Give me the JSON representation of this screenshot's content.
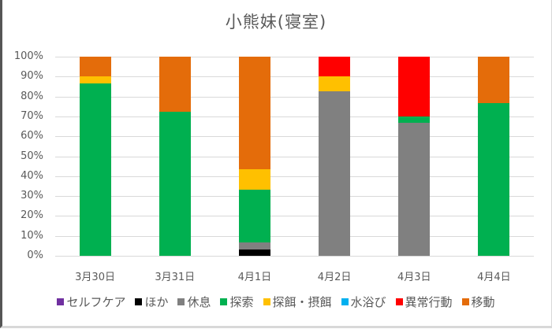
{
  "chart_data": {
    "type": "bar",
    "stacked": true,
    "percent": true,
    "title": "小熊妹(寝室)",
    "xlabel": "",
    "ylabel": "",
    "ylim": [
      0,
      100
    ],
    "yticks": [
      "0%",
      "10%",
      "20%",
      "30%",
      "40%",
      "50%",
      "60%",
      "70%",
      "80%",
      "90%",
      "100%"
    ],
    "grid": true,
    "legend_position": "bottom",
    "categories": [
      "3月30日",
      "3月31日",
      "4月1日",
      "4月2日",
      "4月3日",
      "4月4日"
    ],
    "series": [
      {
        "name": "セルフケア",
        "color": "#7030a0",
        "values": [
          0,
          0,
          0,
          0,
          0,
          0
        ]
      },
      {
        "name": "ほか",
        "color": "#000000",
        "values": [
          0,
          0,
          3.3,
          0,
          0,
          0
        ]
      },
      {
        "name": "休息",
        "color": "#808080",
        "values": [
          0,
          0,
          3.3,
          82.5,
          66.7,
          0
        ]
      },
      {
        "name": "探索",
        "color": "#00b050",
        "values": [
          86.7,
          72.4,
          26.7,
          0,
          3.3,
          76.7
        ]
      },
      {
        "name": "探餌・摂餌",
        "color": "#ffc000",
        "values": [
          3.3,
          0,
          10,
          7.5,
          0,
          0
        ]
      },
      {
        "name": "水浴び",
        "color": "#00b0f0",
        "values": [
          0,
          0,
          0,
          0,
          0,
          0
        ]
      },
      {
        "name": "異常行動",
        "color": "#ff0000",
        "values": [
          0,
          0,
          0,
          10,
          30,
          0
        ]
      },
      {
        "name": "移動",
        "color": "#e46c0a",
        "values": [
          10,
          27.6,
          56.7,
          0,
          0,
          23.3
        ]
      }
    ]
  }
}
